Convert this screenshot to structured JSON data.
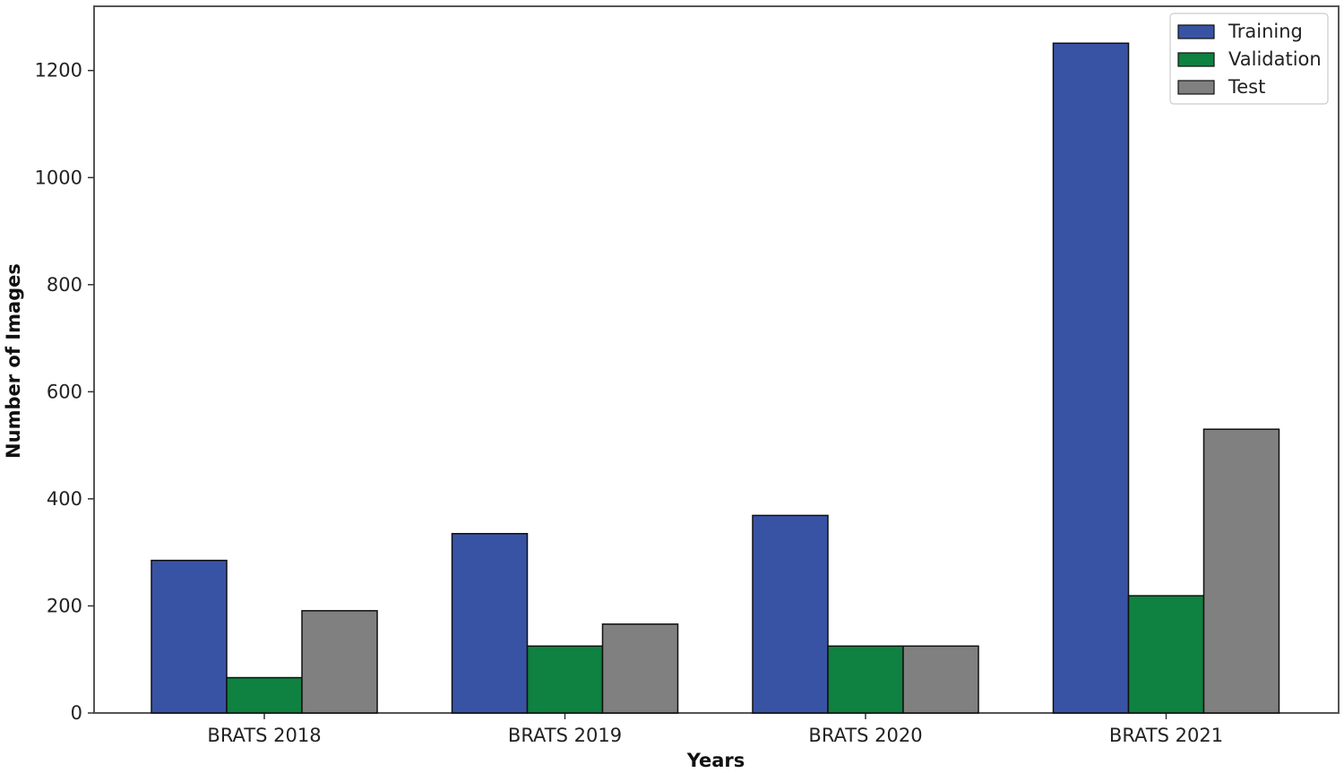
{
  "chart_data": {
    "type": "bar",
    "xlabel": "Years",
    "ylabel": "Number of Images",
    "categories": [
      "BRATS 2018",
      "BRATS 2019",
      "BRATS 2020",
      "BRATS 2021"
    ],
    "series": [
      {
        "name": "Training",
        "color": "#3953a4",
        "values": [
          285,
          335,
          369,
          1251
        ]
      },
      {
        "name": "Validation",
        "color": "#0f8140",
        "values": [
          66,
          125,
          125,
          219
        ]
      },
      {
        "name": "Test",
        "color": "#808080",
        "values": [
          191,
          166,
          125,
          530
        ]
      }
    ],
    "ylim": [
      0,
      1320
    ],
    "yticks": [
      0,
      200,
      400,
      600,
      800,
      1000,
      1200
    ],
    "grid": false,
    "legend": "top-right"
  }
}
